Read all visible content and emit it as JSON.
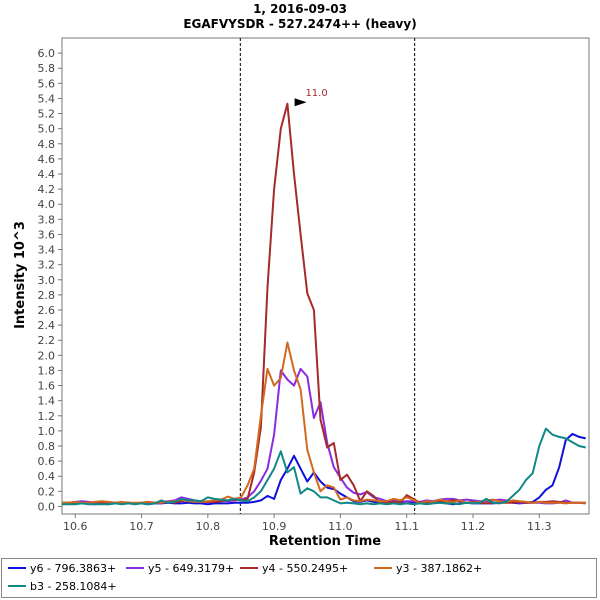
{
  "header": {
    "line1": "1, 2016-09-03",
    "line2": "EGAFVYSDR - 527.2474++ (heavy)"
  },
  "chart_data": {
    "type": "line",
    "title": "1, 2016-09-03",
    "subtitle": "EGAFVYSDR - 527.2474++ (heavy)",
    "xlabel": "Retention Time",
    "ylabel": "Intensity 10^3",
    "xlim": [
      10.58,
      11.375
    ],
    "ylim": [
      -0.1,
      6.2
    ],
    "xticks": [
      10.6,
      10.7,
      10.8,
      10.9,
      11.0,
      11.1,
      11.2,
      11.3
    ],
    "xtick_labels": [
      "10.6",
      "10.7",
      "10.8",
      "10.9",
      "11.0",
      "11.1",
      "11.2",
      "11.3"
    ],
    "yticks": [
      0.0,
      0.2,
      0.4,
      0.6,
      0.8,
      1.0,
      1.2,
      1.4,
      1.6,
      1.8,
      2.0,
      2.2,
      2.4,
      2.6,
      2.8,
      3.0,
      3.2,
      3.4,
      3.6,
      3.8,
      4.0,
      4.2,
      4.4,
      4.6,
      4.8,
      5.0,
      5.2,
      5.4,
      5.6,
      5.8,
      6.0
    ],
    "ytick_labels": [
      "0.0",
      "0.2",
      "0.4",
      "0.6",
      "0.8",
      "1.0",
      "1.2",
      "1.4",
      "1.6",
      "1.8",
      "2.0",
      "2.2",
      "2.4",
      "2.6",
      "2.8",
      "3.0",
      "3.2",
      "3.4",
      "3.6",
      "3.8",
      "4.0",
      "4.2",
      "4.4",
      "4.6",
      "4.8",
      "5.0",
      "5.2",
      "5.4",
      "5.6",
      "5.8",
      "6.0"
    ],
    "integration_bounds": [
      10.849,
      11.112
    ],
    "peak_annotation": {
      "x": 10.955,
      "y": 5.35,
      "label": "11.0"
    },
    "x": [
      10.58,
      10.59,
      10.6,
      10.61,
      10.62,
      10.63,
      10.64,
      10.65,
      10.66,
      10.67,
      10.68,
      10.69,
      10.7,
      10.71,
      10.72,
      10.73,
      10.74,
      10.75,
      10.76,
      10.77,
      10.78,
      10.79,
      10.8,
      10.81,
      10.82,
      10.83,
      10.84,
      10.85,
      10.86,
      10.87,
      10.88,
      10.89,
      10.9,
      10.91,
      10.92,
      10.93,
      10.94,
      10.95,
      10.96,
      10.97,
      10.98,
      10.99,
      11.0,
      11.01,
      11.02,
      11.03,
      11.04,
      11.05,
      11.06,
      11.07,
      11.08,
      11.09,
      11.1,
      11.11,
      11.12,
      11.13,
      11.14,
      11.15,
      11.16,
      11.17,
      11.18,
      11.19,
      11.2,
      11.21,
      11.22,
      11.23,
      11.24,
      11.25,
      11.26,
      11.27,
      11.28,
      11.29,
      11.3,
      11.31,
      11.32,
      11.33,
      11.34,
      11.35,
      11.36,
      11.37
    ],
    "series": [
      {
        "name": "y6 - 796.3863+",
        "color": "#1010dd",
        "values": [
          0.04,
          0.04,
          0.04,
          0.04,
          0.04,
          0.03,
          0.04,
          0.03,
          0.04,
          0.05,
          0.05,
          0.04,
          0.04,
          0.03,
          0.04,
          0.04,
          0.05,
          0.04,
          0.04,
          0.05,
          0.04,
          0.04,
          0.03,
          0.04,
          0.04,
          0.04,
          0.05,
          0.05,
          0.05,
          0.06,
          0.08,
          0.14,
          0.1,
          0.35,
          0.5,
          0.67,
          0.5,
          0.33,
          0.45,
          0.33,
          0.25,
          0.23,
          0.17,
          0.12,
          0.07,
          0.06,
          0.08,
          0.06,
          0.05,
          0.04,
          0.05,
          0.04,
          0.04,
          0.05,
          0.04,
          0.04,
          0.05,
          0.05,
          0.04,
          0.03,
          0.04,
          0.05,
          0.04,
          0.04,
          0.04,
          0.04,
          0.05,
          0.06,
          0.05,
          0.04,
          0.05,
          0.06,
          0.12,
          0.22,
          0.28,
          0.52,
          0.88,
          0.96,
          0.92,
          0.9
        ]
      },
      {
        "name": "y5 - 649.3179+",
        "color": "#8a2be2",
        "values": [
          0.05,
          0.05,
          0.06,
          0.07,
          0.06,
          0.05,
          0.05,
          0.06,
          0.05,
          0.05,
          0.05,
          0.04,
          0.04,
          0.05,
          0.05,
          0.06,
          0.07,
          0.08,
          0.12,
          0.1,
          0.08,
          0.07,
          0.06,
          0.07,
          0.08,
          0.07,
          0.08,
          0.09,
          0.12,
          0.2,
          0.34,
          0.5,
          0.95,
          1.8,
          1.68,
          1.6,
          1.82,
          1.72,
          1.17,
          1.38,
          0.84,
          0.52,
          0.38,
          0.25,
          0.18,
          0.16,
          0.19,
          0.12,
          0.1,
          0.07,
          0.08,
          0.06,
          0.07,
          0.07,
          0.06,
          0.08,
          0.07,
          0.09,
          0.1,
          0.1,
          0.08,
          0.09,
          0.08,
          0.07,
          0.07,
          0.08,
          0.09,
          0.08,
          0.06,
          0.05,
          0.05,
          0.05,
          0.05,
          0.04,
          0.04,
          0.05,
          0.08,
          0.05,
          0.05,
          0.05
        ]
      },
      {
        "name": "y4 - 550.2495+",
        "color": "#a52a2a",
        "values": [
          0.05,
          0.05,
          0.04,
          0.05,
          0.05,
          0.06,
          0.05,
          0.04,
          0.05,
          0.05,
          0.05,
          0.04,
          0.05,
          0.06,
          0.05,
          0.05,
          0.06,
          0.05,
          0.07,
          0.08,
          0.07,
          0.06,
          0.06,
          0.06,
          0.07,
          0.08,
          0.09,
          0.08,
          0.1,
          0.45,
          1.05,
          2.9,
          4.2,
          5.0,
          5.33,
          4.4,
          3.6,
          2.82,
          2.6,
          1.15,
          0.78,
          0.84,
          0.35,
          0.42,
          0.28,
          0.07,
          0.2,
          0.14,
          0.04,
          0.05,
          0.06,
          0.05,
          0.15,
          0.1,
          0.05,
          0.06,
          0.05,
          0.07,
          0.07,
          0.08,
          0.07,
          0.05,
          0.06,
          0.05,
          0.04,
          0.05,
          0.05,
          0.05,
          0.05,
          0.06,
          0.05,
          0.05,
          0.06,
          0.06,
          0.07,
          0.06,
          0.05,
          0.05,
          0.05,
          0.04
        ]
      },
      {
        "name": "y3 - 387.1862+",
        "color": "#d2691e",
        "values": [
          0.05,
          0.05,
          0.06,
          0.05,
          0.05,
          0.06,
          0.07,
          0.06,
          0.05,
          0.06,
          0.05,
          0.05,
          0.05,
          0.06,
          0.05,
          0.05,
          0.06,
          0.07,
          0.09,
          0.07,
          0.06,
          0.06,
          0.07,
          0.08,
          0.09,
          0.13,
          0.1,
          0.12,
          0.28,
          0.5,
          1.2,
          1.82,
          1.6,
          1.7,
          2.17,
          1.8,
          1.55,
          0.75,
          0.45,
          0.2,
          0.28,
          0.25,
          0.09,
          0.12,
          0.08,
          0.07,
          0.09,
          0.08,
          0.07,
          0.07,
          0.1,
          0.08,
          0.12,
          0.09,
          0.04,
          0.07,
          0.06,
          0.09,
          0.07,
          0.06,
          0.08,
          0.05,
          0.05,
          0.06,
          0.08,
          0.09,
          0.07,
          0.06,
          0.08,
          0.07,
          0.06,
          0.05,
          0.06,
          0.05,
          0.05,
          0.05,
          0.04,
          0.05,
          0.05,
          0.05
        ]
      },
      {
        "name": "b3 - 258.1084+",
        "color": "#108888",
        "values": [
          0.03,
          0.03,
          0.03,
          0.04,
          0.03,
          0.03,
          0.03,
          0.03,
          0.04,
          0.03,
          0.04,
          0.03,
          0.04,
          0.03,
          0.04,
          0.08,
          0.05,
          0.06,
          0.1,
          0.08,
          0.08,
          0.07,
          0.12,
          0.1,
          0.09,
          0.08,
          0.1,
          0.08,
          0.07,
          0.12,
          0.2,
          0.35,
          0.5,
          0.73,
          0.45,
          0.52,
          0.17,
          0.24,
          0.2,
          0.12,
          0.12,
          0.08,
          0.04,
          0.05,
          0.04,
          0.03,
          0.04,
          0.03,
          0.04,
          0.03,
          0.04,
          0.03,
          0.04,
          0.03,
          0.04,
          0.03,
          0.04,
          0.05,
          0.04,
          0.04,
          0.03,
          0.05,
          0.04,
          0.05,
          0.1,
          0.05,
          0.04,
          0.06,
          0.14,
          0.22,
          0.35,
          0.44,
          0.8,
          1.03,
          0.95,
          0.92,
          0.9,
          0.85,
          0.8,
          0.78
        ]
      }
    ]
  }
}
